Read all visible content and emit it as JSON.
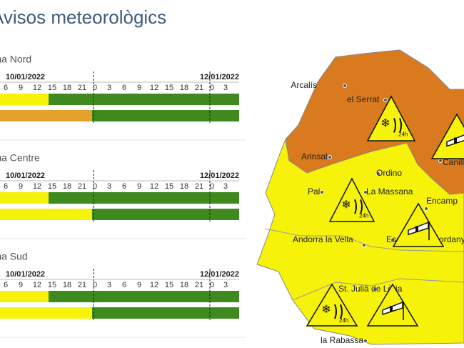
{
  "header": {
    "title": "Avisos meteorològics"
  },
  "timeline": {
    "hours": [
      "6",
      "9",
      "12",
      "15",
      "18",
      "21",
      "0",
      "3",
      "6",
      "9",
      "12",
      "15",
      "18",
      "21",
      "0",
      "3"
    ],
    "start_date": "10/01/2022",
    "end_date": "12/01/2022"
  },
  "zones": [
    {
      "name": "Zona Nord"
    },
    {
      "name": "Zona Centre"
    },
    {
      "name": "Zona Sud"
    }
  ],
  "map": {
    "towns": [
      "Arcalís",
      "el Serrat",
      "Arinsal",
      "Canillo",
      "Ordino",
      "Pal",
      "La Massana",
      "Encamp",
      "Andorra la Vella",
      "Escaldes-Engordany",
      "St. Julià de Lòria",
      "la Rabassa"
    ],
    "snow_label": "24h"
  }
}
